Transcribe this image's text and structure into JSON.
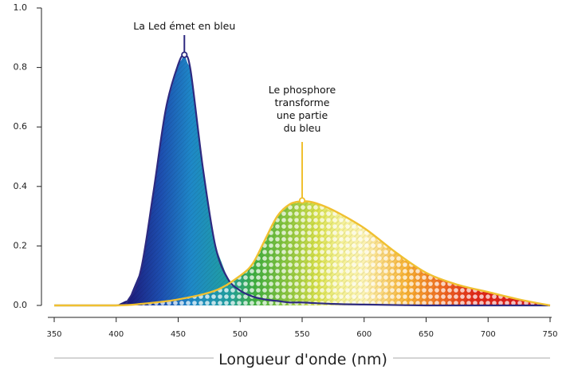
{
  "chart_data": {
    "type": "area",
    "title": "",
    "xlabel": "Longueur d'onde (nm)",
    "ylabel": "",
    "xlim": [
      350,
      750
    ],
    "ylim": [
      0,
      1.0
    ],
    "x_ticks": [
      "350",
      "400",
      "450",
      "500",
      "550",
      "600",
      "650",
      "700",
      "750"
    ],
    "y_ticks": [
      "0.0",
      "0.2",
      "0.4",
      "0.6",
      "0.8",
      "1.0"
    ],
    "grid": false,
    "legend": "none",
    "series": [
      {
        "color": "#2e2a80",
        "x": [
          350,
          400,
          410,
          420,
          430,
          440,
          450,
          455,
          460,
          470,
          480,
          490,
          500,
          510,
          520,
          530,
          540,
          550,
          575,
          600,
          650,
          700,
          750
        ],
        "y": [
          0.0,
          0.0,
          0.02,
          0.12,
          0.38,
          0.66,
          0.81,
          0.84,
          0.79,
          0.46,
          0.2,
          0.09,
          0.05,
          0.03,
          0.02,
          0.015,
          0.01,
          0.01,
          0.005,
          0.003,
          0.0,
          0.0,
          0.0
        ]
      },
      {
        "color": "#f0c030",
        "x": [
          350,
          400,
          420,
          450,
          480,
          500,
          510,
          520,
          530,
          540,
          550,
          560,
          575,
          600,
          625,
          650,
          675,
          700,
          725,
          750
        ],
        "y": [
          0.0,
          0.0,
          0.005,
          0.02,
          0.05,
          0.1,
          0.14,
          0.22,
          0.3,
          0.34,
          0.35,
          0.345,
          0.32,
          0.26,
          0.18,
          0.11,
          0.07,
          0.045,
          0.02,
          0.0
        ]
      }
    ],
    "annotations": [
      {
        "lines": [
          "La Led émet en bleu"
        ],
        "x": 455,
        "y": 0.84
      },
      {
        "lines": [
          "Le phosphore",
          "transforme",
          "une partie",
          "du bleu"
        ],
        "x": 550,
        "y": 0.35
      }
    ]
  },
  "colors": {
    "axis": "#222222",
    "blue_outline": "#2e2a80",
    "phosphor_outline": "#f0c030"
  }
}
